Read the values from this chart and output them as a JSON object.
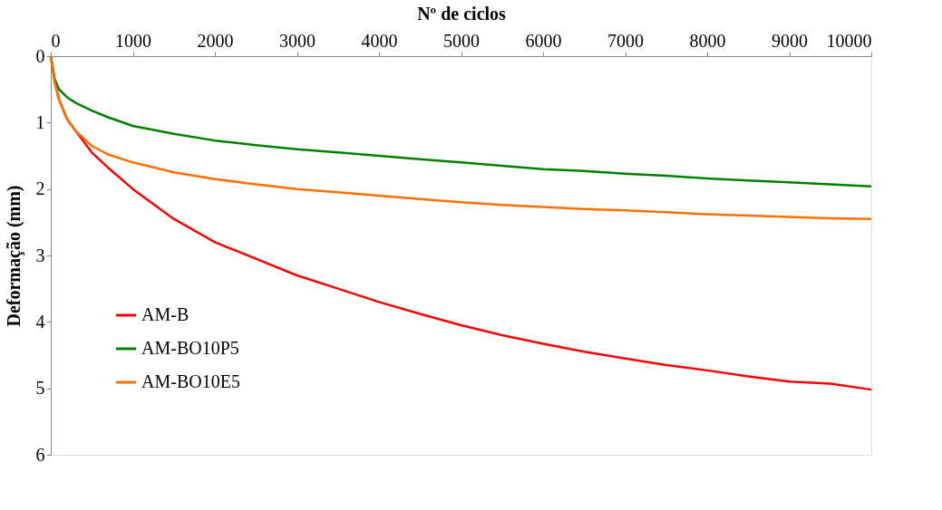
{
  "chart_data": {
    "type": "line",
    "xlabel": "Nº de ciclos",
    "ylabel": "Deformação (mm)",
    "xlim": [
      0,
      10000
    ],
    "xticks": [
      0,
      1000,
      2000,
      3000,
      4000,
      5000,
      6000,
      7000,
      8000,
      9000,
      10000
    ],
    "ylim": [
      6,
      0
    ],
    "yticks": [
      0,
      1,
      2,
      3,
      4,
      5,
      6
    ],
    "grid": false,
    "legend": "bottom left",
    "marker": "none",
    "line_style": "solid",
    "x": [
      0,
      50,
      100,
      200,
      300,
      500,
      700,
      1000,
      1500,
      2000,
      2500,
      3000,
      3500,
      4000,
      4500,
      5000,
      5500,
      6000,
      6500,
      7000,
      7500,
      8000,
      8500,
      9000,
      9500,
      10000
    ],
    "series": [
      {
        "name": "AM-B",
        "color": "#ff0000",
        "values": [
          0,
          0.4,
          0.65,
          0.95,
          1.12,
          1.45,
          1.68,
          2.0,
          2.45,
          2.8,
          3.05,
          3.3,
          3.5,
          3.7,
          3.88,
          4.05,
          4.2,
          4.33,
          4.45,
          4.55,
          4.65,
          4.73,
          4.82,
          4.9,
          4.93,
          5.02
        ]
      },
      {
        "name": "AM-BO10P5",
        "color": "#008000",
        "values": [
          0,
          0.35,
          0.5,
          0.62,
          0.7,
          0.82,
          0.92,
          1.05,
          1.17,
          1.27,
          1.34,
          1.4,
          1.45,
          1.5,
          1.55,
          1.6,
          1.65,
          1.7,
          1.73,
          1.77,
          1.8,
          1.84,
          1.87,
          1.9,
          1.93,
          1.96
        ]
      },
      {
        "name": "AM-BO10E5",
        "color": "#ff7000",
        "values": [
          0,
          0.4,
          0.65,
          0.95,
          1.12,
          1.35,
          1.48,
          1.6,
          1.75,
          1.85,
          1.93,
          2.0,
          2.05,
          2.1,
          2.15,
          2.2,
          2.24,
          2.27,
          2.3,
          2.32,
          2.35,
          2.38,
          2.4,
          2.42,
          2.44,
          2.45
        ]
      }
    ]
  }
}
